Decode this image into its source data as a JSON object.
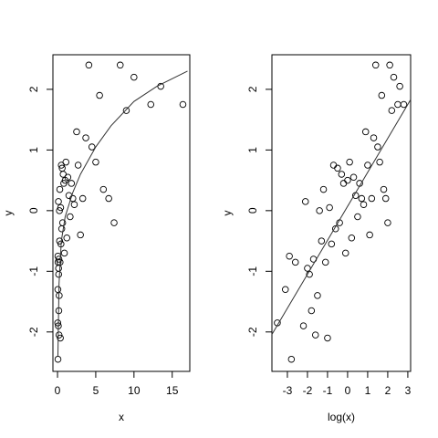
{
  "chart_data": [
    {
      "type": "scatter",
      "xlabel": "x",
      "ylabel": "y",
      "xlim": [
        -0.6,
        17.3
      ],
      "ylim": [
        -2.65,
        2.57
      ],
      "xticks": [
        0,
        5,
        10,
        15
      ],
      "yticks": [
        -2,
        -1,
        0,
        1,
        2
      ],
      "series": [
        {
          "color": "#000000",
          "x": [
            0.03,
            0.045,
            0.055,
            0.06,
            0.074,
            0.11,
            0.12,
            0.14,
            0.15,
            0.17,
            0.18,
            0.2,
            0.22,
            0.25,
            0.27,
            0.3,
            0.33,
            0.37,
            0.41,
            0.45,
            0.5,
            0.55,
            0.61,
            0.67,
            0.74,
            0.82,
            0.9,
            1.0,
            1.1,
            1.22,
            1.35,
            1.49,
            1.65,
            1.82,
            2.0,
            2.2,
            2.5,
            2.7,
            3.0,
            3.3,
            3.7,
            4.1,
            4.5,
            5.0,
            5.5,
            6.0,
            6.7,
            7.4,
            8.2,
            9.0,
            10.0,
            12.2,
            13.5,
            16.4
          ],
          "values": [
            -1.85,
            -1.3,
            -0.75,
            -2.45,
            -0.85,
            -1.9,
            0.15,
            -0.95,
            -1.05,
            -1.65,
            -0.8,
            -2.05,
            -1.4,
            0.0,
            -0.5,
            0.35,
            -0.85,
            -2.1,
            0.05,
            -0.55,
            0.75,
            -0.3,
            0.7,
            -0.2,
            0.6,
            0.45,
            -0.7,
            0.5,
            0.8,
            -0.45,
            0.55,
            0.25,
            -0.1,
            0.45,
            0.2,
            0.1,
            1.3,
            0.75,
            -0.4,
            0.2,
            1.2,
            2.4,
            1.05,
            0.8,
            1.9,
            0.35,
            0.2,
            -0.2,
            2.4,
            1.65,
            2.2,
            1.75,
            2.05,
            1.75
          ]
        },
        {
          "type": "line",
          "color": "#333333",
          "x": [
            0.05,
            0.2,
            0.5,
            1,
            2,
            3,
            5,
            7,
            10,
            13,
            17
          ],
          "values": [
            -2.4,
            -1.2,
            -0.5,
            -0.1,
            0.3,
            0.6,
            1.05,
            1.4,
            1.8,
            2.05,
            2.3
          ]
        }
      ]
    },
    {
      "type": "scatter",
      "xlabel": "log(x)",
      "ylabel": "y",
      "xlim": [
        -3.77,
        3.14
      ],
      "ylim": [
        -2.65,
        2.57
      ],
      "xticks": [
        -3,
        -2,
        -1,
        0,
        1,
        2,
        3
      ],
      "yticks": [
        -2,
        -1,
        0,
        1,
        2
      ],
      "series": [
        {
          "color": "#000000",
          "x": [
            -3.5,
            -3.1,
            -2.9,
            -2.8,
            -2.6,
            -2.2,
            -2.1,
            -2.0,
            -1.9,
            -1.8,
            -1.7,
            -1.6,
            -1.5,
            -1.4,
            -1.3,
            -1.2,
            -1.1,
            -1.0,
            -0.9,
            -0.8,
            -0.7,
            -0.6,
            -0.5,
            -0.4,
            -0.3,
            -0.2,
            -0.1,
            0.0,
            0.1,
            0.2,
            0.3,
            0.4,
            0.5,
            0.6,
            0.7,
            0.8,
            0.9,
            1.0,
            1.1,
            1.2,
            1.3,
            1.4,
            1.5,
            1.6,
            1.7,
            1.8,
            1.9,
            2.0,
            2.1,
            2.2,
            2.3,
            2.5,
            2.6,
            2.8
          ],
          "values": [
            -1.85,
            -1.3,
            -0.75,
            -2.45,
            -0.85,
            -1.9,
            0.15,
            -0.95,
            -1.05,
            -1.65,
            -0.8,
            -2.05,
            -1.4,
            0.0,
            -0.5,
            0.35,
            -0.85,
            -2.1,
            0.05,
            -0.55,
            0.75,
            -0.3,
            0.7,
            -0.2,
            0.6,
            0.45,
            -0.7,
            0.5,
            0.8,
            -0.45,
            0.55,
            0.25,
            -0.1,
            0.45,
            0.2,
            0.1,
            1.3,
            0.75,
            -0.4,
            0.2,
            1.2,
            2.4,
            1.05,
            0.8,
            1.9,
            0.35,
            0.2,
            -0.2,
            2.4,
            1.65,
            2.2,
            1.75,
            2.05,
            1.75
          ]
        },
        {
          "type": "line",
          "color": "#333333",
          "x": [
            -3.77,
            3.14
          ],
          "values": [
            -2.04,
            1.83
          ]
        }
      ]
    }
  ]
}
